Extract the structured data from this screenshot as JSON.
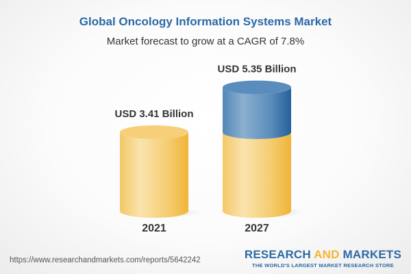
{
  "chart_data": {
    "type": "bar",
    "style": "3d-cylinder",
    "title": "Global Oncology Information Systems Market",
    "subtitle": "Market forecast to grow at a CAGR of 7.8%",
    "categories": [
      "2021",
      "2027"
    ],
    "values": [
      3.41,
      5.35
    ],
    "unit": "USD Billion",
    "data_labels": [
      "USD 3.41 Billion",
      "USD 5.35 Billion"
    ],
    "colors": {
      "base": "#f2c45a",
      "growth": "#4a82b5",
      "title": "#2a6aa6"
    }
  },
  "footer": {
    "url": "https://www.researchandmarkets.com/reports/5642242",
    "logo_text": "RESEARCH AND MARKETS",
    "logo_part1": "RESEARCH ",
    "logo_part2": "AND",
    "logo_part3": " MARKETS",
    "tagline": "THE WORLD'S LARGEST MARKET RESEARCH STORE"
  }
}
